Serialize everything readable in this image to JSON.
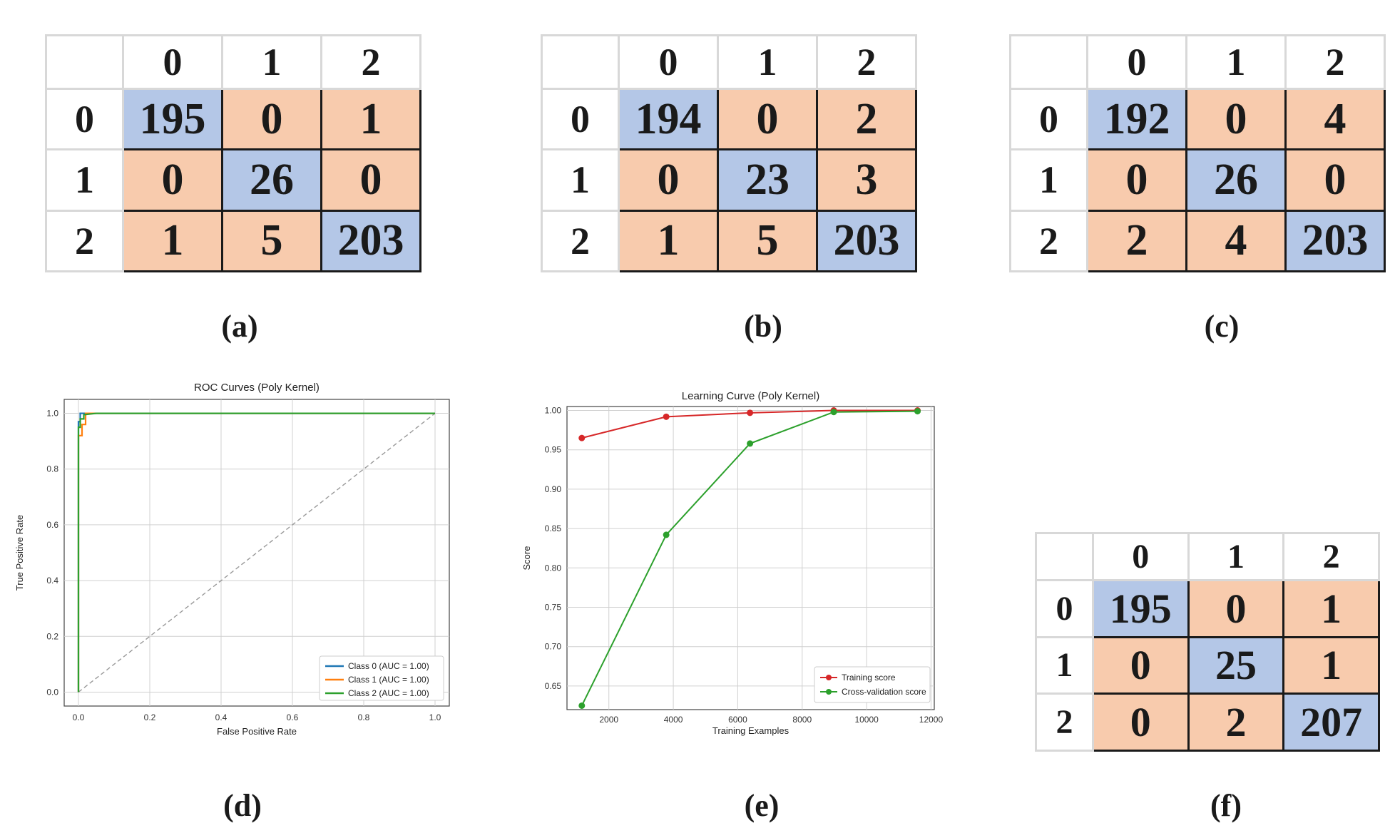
{
  "matrices": {
    "a": {
      "col_labels": [
        "0",
        "1",
        "2"
      ],
      "row_labels": [
        "0",
        "1",
        "2"
      ],
      "rows": [
        [
          "195",
          "0",
          "1"
        ],
        [
          "0",
          "26",
          "0"
        ],
        [
          "1",
          "5",
          "203"
        ]
      ],
      "caption": "(a)"
    },
    "b": {
      "col_labels": [
        "0",
        "1",
        "2"
      ],
      "row_labels": [
        "0",
        "1",
        "2"
      ],
      "rows": [
        [
          "194",
          "0",
          "2"
        ],
        [
          "0",
          "23",
          "3"
        ],
        [
          "1",
          "5",
          "203"
        ]
      ],
      "caption": "(b)"
    },
    "c": {
      "col_labels": [
        "0",
        "1",
        "2"
      ],
      "row_labels": [
        "0",
        "1",
        "2"
      ],
      "rows": [
        [
          "192",
          "0",
          "4"
        ],
        [
          "0",
          "26",
          "0"
        ],
        [
          "2",
          "4",
          "203"
        ]
      ],
      "caption": "(c)"
    },
    "f": {
      "col_labels": [
        "0",
        "1",
        "2"
      ],
      "row_labels": [
        "0",
        "1",
        "2"
      ],
      "rows": [
        [
          "195",
          "0",
          "1"
        ],
        [
          "0",
          "25",
          "1"
        ],
        [
          "0",
          "2",
          "207"
        ]
      ],
      "caption": "(f)"
    }
  },
  "colors": {
    "diagonal": "#b4c7e7",
    "off_diagonal": "#f8cbad",
    "class0": "#1f77b4",
    "class1": "#ff7f0e",
    "class2": "#2ca02c",
    "training": "#d62728",
    "cv": "#2ca02c"
  },
  "chart_data": [
    {
      "type": "line",
      "caption": "(d)",
      "title": "ROC Curves (Poly Kernel)",
      "xlabel": "False Positive Rate",
      "ylabel": "True Positive Rate",
      "xlim": [
        0,
        1.0
      ],
      "ylim": [
        0,
        1.0
      ],
      "xticks": [
        "0.0",
        "0.2",
        "0.4",
        "0.6",
        "0.8",
        "1.0"
      ],
      "yticks": [
        "0.0",
        "0.2",
        "0.4",
        "0.6",
        "0.8",
        "1.0"
      ],
      "grid": true,
      "legend_position": "bottom-right",
      "series": [
        {
          "name": "Class 0 (AUC = 1.00)",
          "x": [
            0,
            0,
            0.005,
            0.005,
            0.02,
            1.0
          ],
          "y": [
            0,
            0.97,
            0.97,
            1.0,
            1.0,
            1.0
          ]
        },
        {
          "name": "Class 1 (AUC = 1.00)",
          "x": [
            0,
            0,
            0.01,
            0.01,
            0.02,
            0.02,
            1.0
          ],
          "y": [
            0,
            0.92,
            0.92,
            0.96,
            0.96,
            1.0,
            1.0
          ]
        },
        {
          "name": "Class 2 (AUC = 1.00)",
          "x": [
            0,
            0,
            0.005,
            0.005,
            0.015,
            0.015,
            0.05,
            1.0
          ],
          "y": [
            0,
            0.95,
            0.95,
            0.98,
            0.98,
            0.995,
            1.0,
            1.0
          ]
        }
      ],
      "reference_line": {
        "x": [
          0,
          1
        ],
        "y": [
          0,
          1
        ]
      }
    },
    {
      "type": "line",
      "caption": "(e)",
      "title": "Learning Curve (Poly Kernel)",
      "xlabel": "Training Examples",
      "ylabel": "Score",
      "xlim": [
        700,
        12000
      ],
      "ylim": [
        0.62,
        1.005
      ],
      "xticks": [
        "2000",
        "4000",
        "6000",
        "8000",
        "10000",
        "12000"
      ],
      "yticks": [
        "0.65",
        "0.70",
        "0.75",
        "0.80",
        "0.85",
        "0.90",
        "0.95",
        "1.00"
      ],
      "grid": true,
      "legend_position": "bottom-right",
      "x": [
        1160,
        3780,
        6380,
        8980,
        11580
      ],
      "series": [
        {
          "name": "Training score",
          "values": [
            0.965,
            0.992,
            0.997,
            1.0,
            1.0
          ]
        },
        {
          "name": "Cross-validation score",
          "values": [
            0.625,
            0.842,
            0.958,
            0.998,
            0.999
          ]
        }
      ]
    }
  ]
}
